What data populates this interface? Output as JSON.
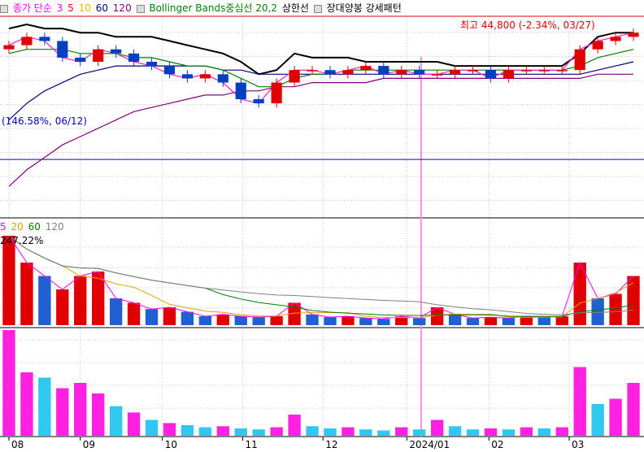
{
  "chart_data": [
    {
      "type": "line",
      "panel": "price",
      "legend": [
        {
          "label": "종가 단순",
          "color": "#000000"
        },
        {
          "label": "3",
          "color": "#ff00ff"
        },
        {
          "label": "5",
          "color": "#ff0000"
        },
        {
          "label": "10",
          "color": "#e0c000"
        },
        {
          "label": "60",
          "color": "#000080"
        },
        {
          "label": "120",
          "color": "#7f007f"
        },
        {
          "label": "Bollinger Bands중심선 20,2",
          "color": "#008000"
        },
        {
          "label": "상한선",
          "color": "#000000"
        },
        {
          "label": "장대양봉 강세패턴",
          "color": "#000000"
        }
      ],
      "annotations": {
        "high": "최고 44,800 (-2.34%, 03/27)",
        "low": "(146.58%, 06/12)"
      },
      "x_labels": [
        "08",
        "09",
        "10",
        "11",
        "12",
        "2024/01",
        "02",
        "03"
      ],
      "x_label_pos": [
        0.5,
        4.5,
        9.1,
        13.6,
        18.1,
        22.8,
        27.4,
        31.9
      ],
      "ncandles": 36,
      "close": [
        40,
        42,
        41,
        37,
        36,
        39,
        38,
        36,
        35,
        33,
        32,
        33,
        31,
        27,
        26,
        31,
        34,
        34,
        33,
        34,
        35,
        33,
        34,
        33,
        33,
        34,
        34,
        32,
        34,
        34,
        34,
        34,
        39,
        41,
        42,
        43
      ],
      "ylim": [
        0,
        45
      ],
      "bands_upper": [
        44,
        45,
        44,
        44,
        43,
        43,
        42,
        42,
        42,
        41,
        40,
        39,
        38,
        36,
        33,
        34,
        38,
        37,
        37,
        37,
        36,
        36,
        36,
        36,
        36,
        35,
        35,
        35,
        35,
        35,
        35,
        35,
        38,
        42,
        43,
        43
      ],
      "bands_middle": [
        38,
        39,
        39,
        39,
        38,
        38,
        38,
        37,
        37,
        36,
        35,
        35,
        34,
        32,
        30,
        30,
        32,
        33,
        33,
        34,
        34,
        34,
        34,
        34,
        34,
        34,
        34,
        34,
        34,
        34,
        34,
        34,
        35,
        37,
        38,
        39
      ],
      "ma60": [
        22,
        26,
        29,
        31,
        33,
        34,
        35,
        35,
        35,
        35,
        35,
        35,
        34,
        34,
        33,
        33,
        33,
        33,
        33,
        33,
        33,
        33,
        33,
        33,
        33,
        33,
        33,
        33,
        33,
        33,
        33,
        33,
        33,
        34,
        35,
        36
      ],
      "ma120": [
        6,
        10,
        13,
        16,
        18,
        20,
        22,
        24,
        25,
        26,
        27,
        28,
        28,
        29,
        29,
        30,
        30,
        31,
        31,
        31,
        31,
        32,
        32,
        32,
        32,
        32,
        32,
        32,
        32,
        32,
        32,
        32,
        32,
        33,
        33,
        33
      ],
      "ref_value": 12.5
    },
    {
      "type": "bar",
      "panel": "volume",
      "legend": [
        {
          "label": "5",
          "color": "#ff00ff"
        },
        {
          "label": "20",
          "color": "#e0a000"
        },
        {
          "label": "60",
          "color": "#008000"
        },
        {
          "label": "120",
          "color": "#808080"
        }
      ],
      "annotation": "247.22%",
      "values": [
        100,
        70,
        55,
        40,
        55,
        60,
        30,
        25,
        18,
        20,
        15,
        10,
        12,
        10,
        9,
        10,
        25,
        12,
        9,
        10,
        8,
        7,
        10,
        8,
        20,
        12,
        8,
        9,
        8,
        10,
        9,
        10,
        70,
        30,
        35,
        55
      ],
      "colors": [
        "red",
        "red",
        "blue",
        "red",
        "red",
        "red",
        "blue",
        "red",
        "blue",
        "red",
        "blue",
        "blue",
        "red",
        "blue",
        "blue",
        "red",
        "red",
        "blue",
        "blue",
        "red",
        "blue",
        "blue",
        "red",
        "blue",
        "red",
        "blue",
        "blue",
        "red",
        "blue",
        "red",
        "blue",
        "red",
        "red",
        "blue",
        "red",
        "red"
      ],
      "ylim": [
        0,
        100
      ]
    },
    {
      "type": "bar",
      "panel": "oscillator",
      "values": [
        100,
        60,
        55,
        45,
        50,
        40,
        28,
        22,
        15,
        12,
        10,
        8,
        9,
        7,
        6,
        8,
        20,
        9,
        7,
        8,
        6,
        5,
        8,
        6,
        15,
        9,
        6,
        7,
        6,
        8,
        7,
        8,
        65,
        30,
        35,
        50
      ],
      "colors": [
        "magenta",
        "magenta",
        "cyan",
        "magenta",
        "magenta",
        "magenta",
        "cyan",
        "magenta",
        "cyan",
        "magenta",
        "cyan",
        "cyan",
        "magenta",
        "cyan",
        "cyan",
        "magenta",
        "magenta",
        "cyan",
        "cyan",
        "magenta",
        "cyan",
        "cyan",
        "magenta",
        "cyan",
        "magenta",
        "cyan",
        "cyan",
        "magenta",
        "cyan",
        "magenta",
        "cyan",
        "magenta",
        "magenta",
        "cyan",
        "magenta",
        "magenta"
      ],
      "ylim": [
        0,
        100
      ]
    }
  ]
}
